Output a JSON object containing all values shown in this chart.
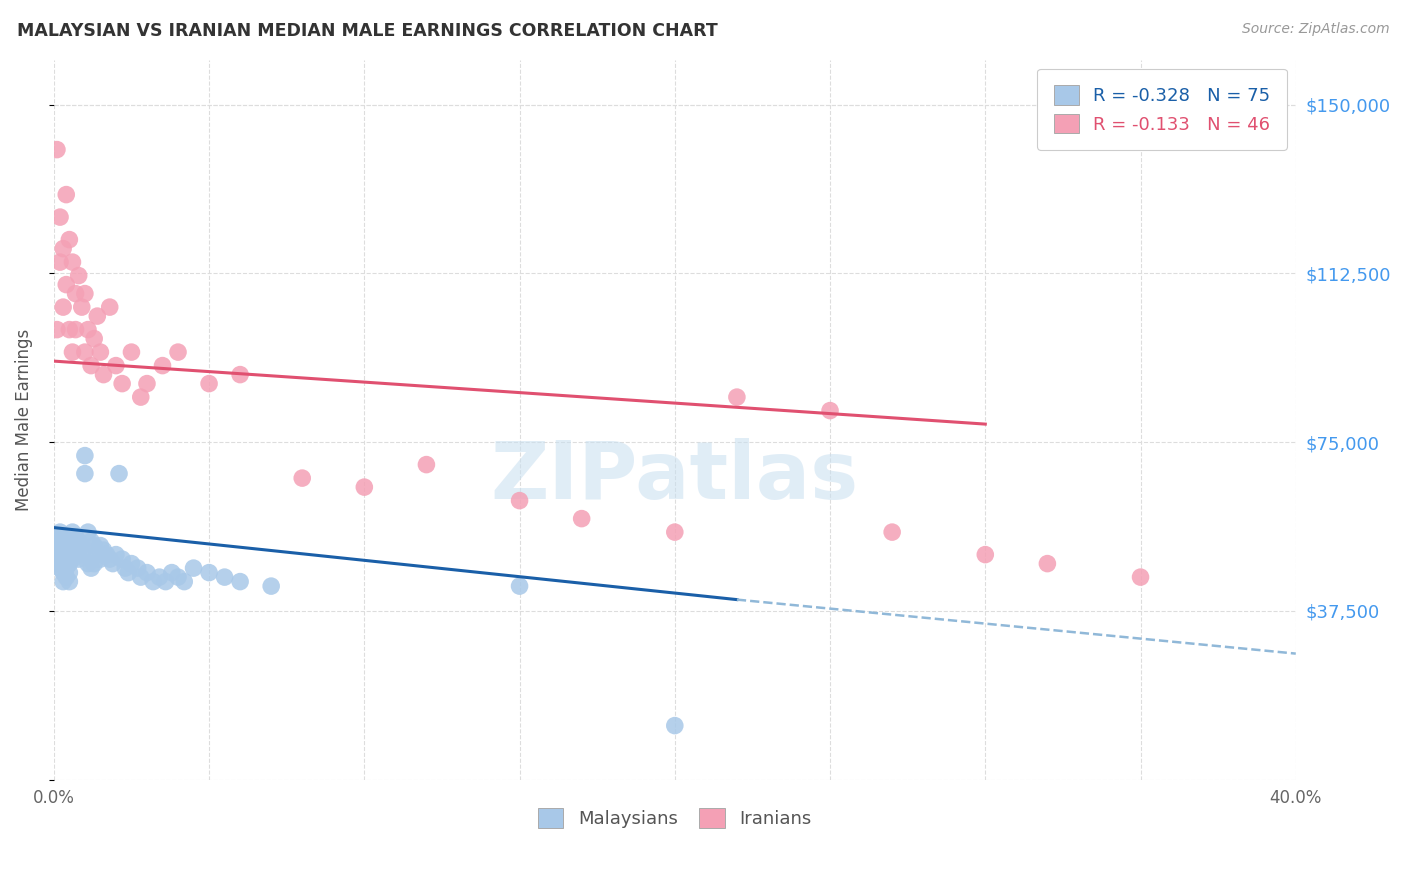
{
  "title": "MALAYSIAN VS IRANIAN MEDIAN MALE EARNINGS CORRELATION CHART",
  "source": "Source: ZipAtlas.com",
  "ylabel": "Median Male Earnings",
  "yticks": [
    0,
    37500,
    75000,
    112500,
    150000
  ],
  "ytick_labels": [
    "",
    "$37,500",
    "$75,000",
    "$112,500",
    "$150,000"
  ],
  "xlim": [
    0.0,
    0.4
  ],
  "ylim": [
    0,
    160000
  ],
  "watermark": "ZIPatlas",
  "legend_r_malay": "R = -0.328",
  "legend_n_malay": "N = 75",
  "legend_r_iran": "R = -0.133",
  "legend_n_iran": "N = 46",
  "malay_color": "#a8c8e8",
  "iran_color": "#f4a0b5",
  "malay_line_color": "#1a5fa8",
  "iran_line_color": "#e05070",
  "dashed_line_color": "#90b8d8",
  "background_color": "#ffffff",
  "title_color": "#333333",
  "ytick_color": "#4499ee",
  "grid_color": "#dddddd",
  "malay_scatter_x": [
    0.001,
    0.001,
    0.001,
    0.001,
    0.002,
    0.002,
    0.002,
    0.002,
    0.002,
    0.003,
    0.003,
    0.003,
    0.003,
    0.003,
    0.003,
    0.004,
    0.004,
    0.004,
    0.004,
    0.004,
    0.005,
    0.005,
    0.005,
    0.005,
    0.005,
    0.006,
    0.006,
    0.006,
    0.006,
    0.007,
    0.007,
    0.007,
    0.008,
    0.008,
    0.008,
    0.009,
    0.009,
    0.01,
    0.01,
    0.01,
    0.011,
    0.011,
    0.012,
    0.012,
    0.013,
    0.013,
    0.014,
    0.015,
    0.015,
    0.016,
    0.017,
    0.018,
    0.019,
    0.02,
    0.021,
    0.022,
    0.023,
    0.024,
    0.025,
    0.027,
    0.028,
    0.03,
    0.032,
    0.034,
    0.036,
    0.038,
    0.04,
    0.042,
    0.045,
    0.05,
    0.055,
    0.06,
    0.07,
    0.15,
    0.2
  ],
  "malay_scatter_y": [
    54000,
    52000,
    50000,
    48000,
    55000,
    53000,
    51000,
    49000,
    47000,
    54000,
    52000,
    50000,
    48000,
    46000,
    44000,
    53000,
    51000,
    49000,
    47000,
    45000,
    52000,
    50000,
    48000,
    46000,
    44000,
    55000,
    53000,
    51000,
    49000,
    54000,
    52000,
    50000,
    53000,
    51000,
    49000,
    52000,
    50000,
    72000,
    68000,
    50000,
    55000,
    48000,
    53000,
    47000,
    52000,
    48000,
    50000,
    52000,
    49000,
    51000,
    50000,
    49000,
    48000,
    50000,
    68000,
    49000,
    47000,
    46000,
    48000,
    47000,
    45000,
    46000,
    44000,
    45000,
    44000,
    46000,
    45000,
    44000,
    47000,
    46000,
    45000,
    44000,
    43000,
    43000,
    12000
  ],
  "iran_scatter_x": [
    0.001,
    0.001,
    0.002,
    0.002,
    0.003,
    0.003,
    0.004,
    0.004,
    0.005,
    0.005,
    0.006,
    0.006,
    0.007,
    0.007,
    0.008,
    0.009,
    0.01,
    0.01,
    0.011,
    0.012,
    0.013,
    0.014,
    0.015,
    0.016,
    0.018,
    0.02,
    0.022,
    0.025,
    0.028,
    0.03,
    0.035,
    0.04,
    0.05,
    0.06,
    0.08,
    0.1,
    0.12,
    0.15,
    0.17,
    0.2,
    0.22,
    0.25,
    0.27,
    0.3,
    0.32,
    0.35
  ],
  "iran_scatter_y": [
    140000,
    100000,
    125000,
    115000,
    118000,
    105000,
    110000,
    130000,
    100000,
    120000,
    95000,
    115000,
    108000,
    100000,
    112000,
    105000,
    108000,
    95000,
    100000,
    92000,
    98000,
    103000,
    95000,
    90000,
    105000,
    92000,
    88000,
    95000,
    85000,
    88000,
    92000,
    95000,
    88000,
    90000,
    67000,
    65000,
    70000,
    62000,
    58000,
    55000,
    85000,
    82000,
    55000,
    50000,
    48000,
    45000
  ],
  "malay_line_x": [
    0.0,
    0.22
  ],
  "malay_line_y": [
    56000,
    40000
  ],
  "iran_line_x": [
    0.0,
    0.3
  ],
  "iran_line_y": [
    93000,
    79000
  ],
  "dashed_line_x": [
    0.22,
    0.4
  ],
  "dashed_line_y": [
    40000,
    28000
  ]
}
